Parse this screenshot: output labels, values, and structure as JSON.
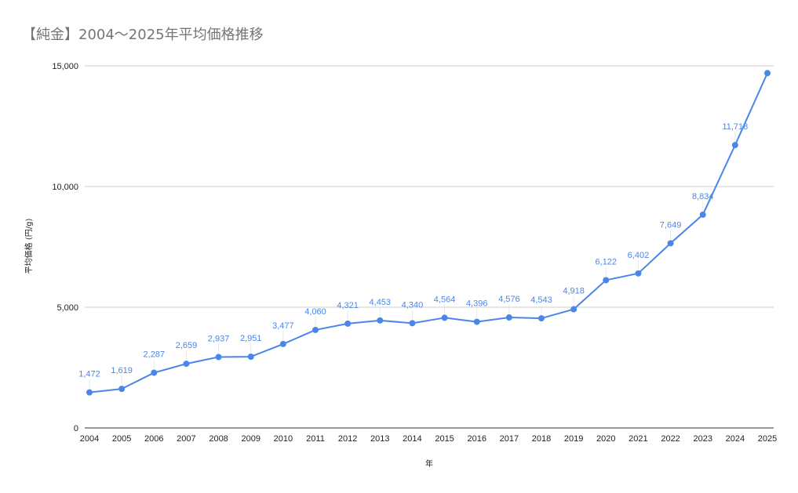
{
  "chart_data": {
    "type": "line",
    "title": "【純金】2004～2025年平均価格推移",
    "xlabel": "年",
    "ylabel": "平均価格 (円/g)",
    "ylim": [
      0,
      15000
    ],
    "yticks": [
      0,
      5000,
      10000,
      15000
    ],
    "ytick_labels": [
      "0",
      "5,000",
      "10,000",
      "15,000"
    ],
    "grid": true,
    "line_color": "#4a86e8",
    "x": [
      "2004",
      "2005",
      "2006",
      "2007",
      "2008",
      "2009",
      "2010",
      "2011",
      "2012",
      "2013",
      "2014",
      "2015",
      "2016",
      "2017",
      "2018",
      "2019",
      "2020",
      "2021",
      "2022",
      "2023",
      "2024",
      "2025"
    ],
    "series": [
      {
        "values": [
          1472,
          1619,
          2287,
          2659,
          2937,
          2951,
          3477,
          4060,
          4321,
          4453,
          4340,
          4564,
          4396,
          4576,
          4543,
          4918,
          6122,
          6402,
          7649,
          8834,
          11718,
          14700
        ],
        "labels": [
          "1,472",
          "1,619",
          "2,287",
          "2,659",
          "2,937",
          "2,951",
          "3,477",
          "4,060",
          "4,321",
          "4,453",
          "4,340",
          "4,564",
          "4,396",
          "4,576",
          "4,543",
          "4,918",
          "6,122",
          "6,402",
          "7,649",
          "8,834",
          "11,718",
          ""
        ]
      }
    ]
  }
}
